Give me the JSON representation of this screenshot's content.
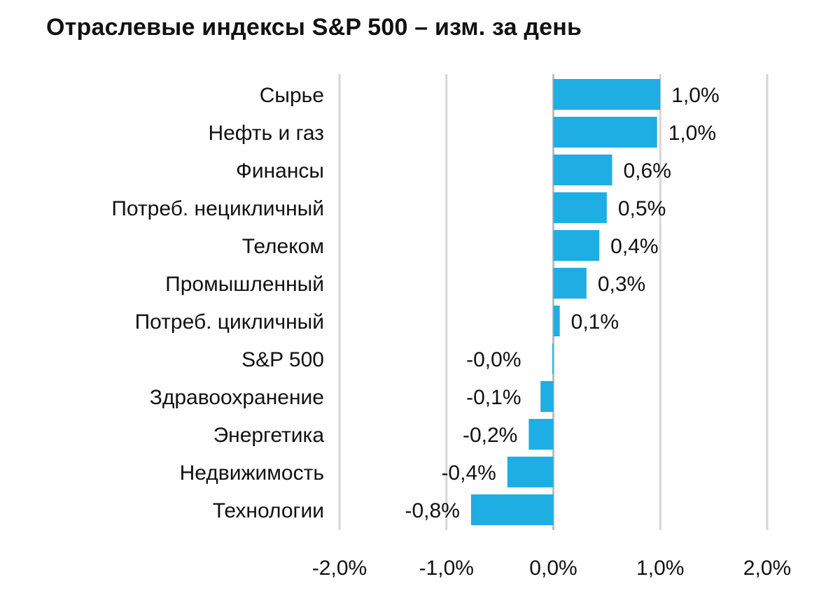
{
  "chart_data": {
    "type": "bar",
    "orientation": "horizontal",
    "title": "Отраслевые индексы S&P 500 – изм. за день",
    "xlabel": "",
    "ylabel": "",
    "xlim": [
      -2.0,
      2.0
    ],
    "grid": true,
    "colors": {
      "bar": "#1EAEE3",
      "grid": "#D6D6D6",
      "zero_line": "#BDBDBD"
    },
    "categories": [
      "Сырье",
      "Нефть и газ",
      "Финансы",
      "Потреб. нецикличный",
      "Телеком",
      "Промышленный",
      "Потреб. цикличный",
      "S&P 500",
      "Здравоохранение",
      "Энергетика",
      "Недвижимость",
      "Технологии"
    ],
    "values": [
      1.0,
      0.97,
      0.55,
      0.5,
      0.43,
      0.31,
      0.06,
      -0.01,
      -0.12,
      -0.23,
      -0.43,
      -0.77
    ],
    "value_labels": [
      "1,0%",
      "1,0%",
      "0,6%",
      "0,5%",
      "0,4%",
      "0,3%",
      "0,1%",
      "-0,0%",
      "-0,1%",
      "-0,2%",
      "-0,4%",
      "-0,8%"
    ],
    "ticks": [
      -2.0,
      -1.0,
      0.0,
      1.0,
      2.0
    ],
    "tick_labels": [
      "-2,0%",
      "-1,0%",
      "0,0%",
      "1,0%",
      "2,0%"
    ]
  }
}
